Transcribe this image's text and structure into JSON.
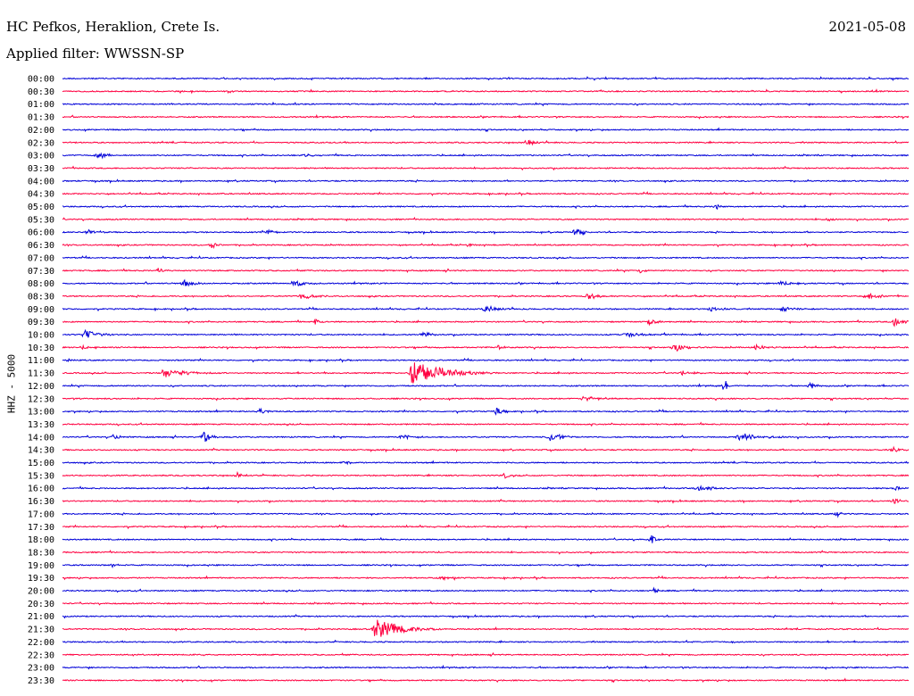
{
  "header": {
    "station": "HC Pefkos, Heraklion, Crete Is.",
    "filter": "Applied filter: WWSSN-SP",
    "date": "2021-05-08",
    "channel": "HHZ - 5000"
  },
  "colors": {
    "even_trace": "#0000d8",
    "odd_trace": "#ff0040",
    "background": "#ffffff"
  },
  "chart_data": {
    "type": "line",
    "title": "HC Pefkos, Heraklion, Crete Is.",
    "subtitle": "Applied filter: WWSSN-SP",
    "ylabel": "HHZ - 5000",
    "xlabel": "",
    "rows": [
      "00:00",
      "00:30",
      "01:00",
      "01:30",
      "02:00",
      "02:30",
      "03:00",
      "03:30",
      "04:00",
      "04:30",
      "05:00",
      "05:30",
      "06:00",
      "06:30",
      "07:00",
      "07:30",
      "08:00",
      "08:30",
      "09:00",
      "09:30",
      "10:00",
      "10:30",
      "11:00",
      "11:30",
      "12:00",
      "12:30",
      "13:00",
      "13:30",
      "14:00",
      "14:30",
      "15:00",
      "15:30",
      "16:00",
      "16:30",
      "17:00",
      "17:30",
      "18:00",
      "18:30",
      "19:00",
      "19:30",
      "20:00",
      "20:30",
      "21:00",
      "21:30",
      "22:00",
      "22:30",
      "23:00",
      "23:30"
    ],
    "row_minutes": 30,
    "events": [
      {
        "row": "02:30",
        "minute": 16.5,
        "amp": 0.6,
        "dur": 0.8
      },
      {
        "row": "03:00",
        "minute": 1.3,
        "amp": 0.5,
        "dur": 1.0
      },
      {
        "row": "03:00",
        "minute": 8.8,
        "amp": 0.3,
        "dur": 0.4
      },
      {
        "row": "03:00",
        "minute": 8.6,
        "amp": 0.25,
        "dur": 0.4
      },
      {
        "row": "05:00",
        "minute": 23.2,
        "amp": 0.5,
        "dur": 0.4
      },
      {
        "row": "05:30",
        "minute": 27.2,
        "amp": 0.4,
        "dur": 0.3
      },
      {
        "row": "06:00",
        "minute": 0.9,
        "amp": 0.5,
        "dur": 0.6
      },
      {
        "row": "06:00",
        "minute": 7.3,
        "amp": 0.4,
        "dur": 0.6
      },
      {
        "row": "06:00",
        "minute": 18.2,
        "amp": 0.8,
        "dur": 0.8
      },
      {
        "row": "06:30",
        "minute": 5.3,
        "amp": 0.7,
        "dur": 0.4
      },
      {
        "row": "06:30",
        "minute": 14.4,
        "amp": 0.6,
        "dur": 0.3
      },
      {
        "row": "07:30",
        "minute": 3.4,
        "amp": 0.4,
        "dur": 0.6
      },
      {
        "row": "07:30",
        "minute": 20.5,
        "amp": 0.4,
        "dur": 0.4
      },
      {
        "row": "08:00",
        "minute": 4.3,
        "amp": 0.6,
        "dur": 1.2
      },
      {
        "row": "08:00",
        "minute": 8.2,
        "amp": 0.6,
        "dur": 1.0
      },
      {
        "row": "08:00",
        "minute": 25.5,
        "amp": 0.6,
        "dur": 0.8
      },
      {
        "row": "08:30",
        "minute": 8.5,
        "amp": 0.6,
        "dur": 1.0
      },
      {
        "row": "08:30",
        "minute": 18.6,
        "amp": 0.7,
        "dur": 0.9
      },
      {
        "row": "08:30",
        "minute": 28.5,
        "amp": 0.5,
        "dur": 1.5
      },
      {
        "row": "09:00",
        "minute": 15.0,
        "amp": 0.5,
        "dur": 1.5
      },
      {
        "row": "09:00",
        "minute": 23.0,
        "amp": 0.5,
        "dur": 0.8
      },
      {
        "row": "09:00",
        "minute": 25.5,
        "amp": 0.5,
        "dur": 1.0
      },
      {
        "row": "09:30",
        "minute": 9.0,
        "amp": 0.5,
        "dur": 0.4
      },
      {
        "row": "09:30",
        "minute": 20.8,
        "amp": 0.5,
        "dur": 1.0
      },
      {
        "row": "09:30",
        "minute": 29.5,
        "amp": 1.0,
        "dur": 0.6
      },
      {
        "row": "10:00",
        "minute": 0.8,
        "amp": 0.8,
        "dur": 1.2
      },
      {
        "row": "10:00",
        "minute": 12.8,
        "amp": 0.7,
        "dur": 0.5
      },
      {
        "row": "10:00",
        "minute": 20.0,
        "amp": 0.5,
        "dur": 1.5
      },
      {
        "row": "10:30",
        "minute": 0.7,
        "amp": 0.5,
        "dur": 0.5
      },
      {
        "row": "10:30",
        "minute": 15.4,
        "amp": 0.6,
        "dur": 0.4
      },
      {
        "row": "10:30",
        "minute": 21.7,
        "amp": 0.8,
        "dur": 0.9
      },
      {
        "row": "10:30",
        "minute": 24.6,
        "amp": 0.5,
        "dur": 1.0
      },
      {
        "row": "11:00",
        "minute": 0.2,
        "amp": 0.4,
        "dur": 0.4
      },
      {
        "row": "11:30",
        "minute": 3.6,
        "amp": 0.8,
        "dur": 2.0
      },
      {
        "row": "11:30",
        "minute": 12.4,
        "amp": 2.4,
        "dur": 3.0
      },
      {
        "row": "11:30",
        "minute": 22.0,
        "amp": 0.4,
        "dur": 1.0
      },
      {
        "row": "12:00",
        "minute": 23.5,
        "amp": 1.3,
        "dur": 0.2
      },
      {
        "row": "12:00",
        "minute": 26.5,
        "amp": 0.5,
        "dur": 0.8
      },
      {
        "row": "12:30",
        "minute": 18.5,
        "amp": 0.5,
        "dur": 1.2
      },
      {
        "row": "13:00",
        "minute": 7.0,
        "amp": 0.4,
        "dur": 1.0
      },
      {
        "row": "13:00",
        "minute": 15.4,
        "amp": 0.6,
        "dur": 0.5
      },
      {
        "row": "14:00",
        "minute": 1.8,
        "amp": 0.5,
        "dur": 0.8
      },
      {
        "row": "14:00",
        "minute": 5.0,
        "amp": 1.4,
        "dur": 0.6
      },
      {
        "row": "14:00",
        "minute": 12.0,
        "amp": 0.5,
        "dur": 1.0
      },
      {
        "row": "14:00",
        "minute": 17.3,
        "amp": 0.9,
        "dur": 1.2
      },
      {
        "row": "14:00",
        "minute": 24.0,
        "amp": 0.8,
        "dur": 2.0
      },
      {
        "row": "14:30",
        "minute": 29.5,
        "amp": 0.5,
        "dur": 0.6
      },
      {
        "row": "15:00",
        "minute": 10.0,
        "amp": 0.4,
        "dur": 0.5
      },
      {
        "row": "15:30",
        "minute": 6.2,
        "amp": 0.5,
        "dur": 0.5
      },
      {
        "row": "15:30",
        "minute": 15.7,
        "amp": 0.5,
        "dur": 0.3
      },
      {
        "row": "16:00",
        "minute": 22.5,
        "amp": 0.6,
        "dur": 1.2
      },
      {
        "row": "16:00",
        "minute": 29.5,
        "amp": 0.5,
        "dur": 0.6
      },
      {
        "row": "16:30",
        "minute": 29.5,
        "amp": 0.5,
        "dur": 0.6
      },
      {
        "row": "17:00",
        "minute": 27.4,
        "amp": 0.6,
        "dur": 0.6
      },
      {
        "row": "18:00",
        "minute": 20.9,
        "amp": 0.8,
        "dur": 0.4
      },
      {
        "row": "19:00",
        "minute": 1.8,
        "amp": 0.5,
        "dur": 0.3
      },
      {
        "row": "19:30",
        "minute": 13.4,
        "amp": 0.5,
        "dur": 1.0
      },
      {
        "row": "20:00",
        "minute": 21.0,
        "amp": 0.6,
        "dur": 0.3
      },
      {
        "row": "21:30",
        "minute": 11.1,
        "amp": 1.9,
        "dur": 2.5
      }
    ]
  }
}
